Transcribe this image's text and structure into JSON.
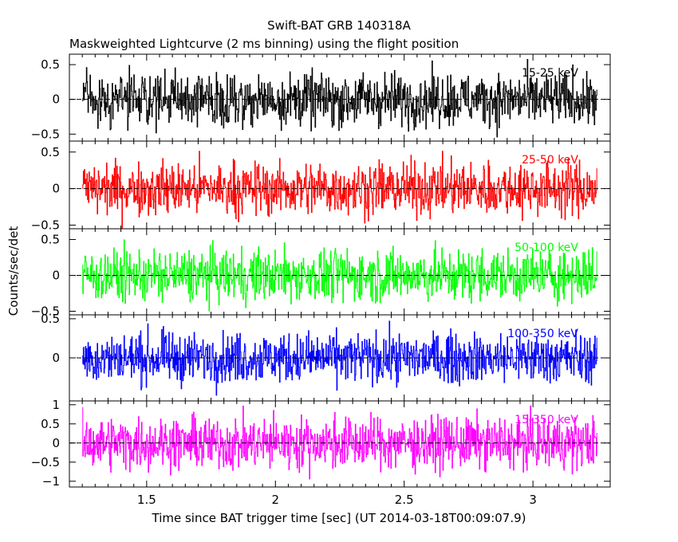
{
  "chart_data": {
    "type": "line",
    "title": "Swift-BAT GRB 140318A",
    "subtitle": "Maskweighted Lightcurve (2 ms binning) using the flight position",
    "xlabel": "Time since BAT trigger time [sec] (UT 2014-03-18T00:09:07.9)",
    "ylabel": "Counts/sec/det",
    "xlim": [
      1.2,
      3.3
    ],
    "x_ticks": [
      "1.5",
      "2",
      "2.5",
      "3"
    ],
    "x_tick_values": [
      1.5,
      2,
      2.5,
      3
    ],
    "x_range_data": [
      1.25,
      3.25
    ],
    "bin_width_s": 0.002,
    "panels": [
      {
        "name": "15-25 keV",
        "color": "#000000",
        "ylim": [
          -0.6,
          0.65
        ],
        "y_ticks": [
          "0.5",
          "0",
          "−0.5"
        ],
        "y_tick_values": [
          0.5,
          0,
          -0.5
        ],
        "noise_amp": 0.42
      },
      {
        "name": "25-50 keV",
        "color": "#ff0000",
        "ylim": [
          -0.55,
          0.65
        ],
        "y_ticks": [
          "0.5",
          "0",
          "−0.5"
        ],
        "y_tick_values": [
          0.5,
          0,
          -0.5
        ],
        "noise_amp": 0.4
      },
      {
        "name": "50-100 keV",
        "color": "#00ff00",
        "ylim": [
          -0.55,
          0.65
        ],
        "y_ticks": [
          "0.5",
          "0",
          "−0.5"
        ],
        "y_tick_values": [
          0.5,
          0,
          -0.5
        ],
        "noise_amp": 0.4
      },
      {
        "name": "100-350 keV",
        "color": "#0000ff",
        "ylim": [
          -0.55,
          0.55
        ],
        "y_ticks": [
          "0.5",
          "0"
        ],
        "y_tick_values": [
          0.5,
          0
        ],
        "noise_amp": 0.35
      },
      {
        "name": "15-350 keV",
        "color": "#ff00ff",
        "ylim": [
          -1.15,
          1.1
        ],
        "y_ticks": [
          "1",
          "0.5",
          "0",
          "−0.5",
          "−1"
        ],
        "y_tick_values": [
          1,
          0.5,
          0,
          -0.5,
          -1
        ],
        "noise_amp": 0.75
      }
    ]
  }
}
